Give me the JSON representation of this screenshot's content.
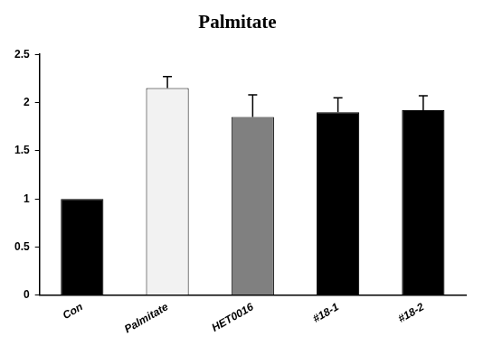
{
  "chart_data": {
    "type": "bar",
    "title": "Palmitate",
    "categories": [
      "Con",
      "Palmitate",
      "HET0016",
      "#18-1",
      "#18-2"
    ],
    "values": [
      1.0,
      2.15,
      1.85,
      1.9,
      1.92
    ],
    "errors": [
      null,
      0.12,
      0.23,
      0.15,
      0.15
    ],
    "colors": [
      "#000000",
      "#f2f2f2",
      "#808080",
      "#000000",
      "#000000"
    ],
    "ylim": [
      0,
      2.5
    ],
    "yticks": [
      0,
      0.5,
      1,
      1.5,
      2,
      2.5
    ],
    "grid": false
  }
}
